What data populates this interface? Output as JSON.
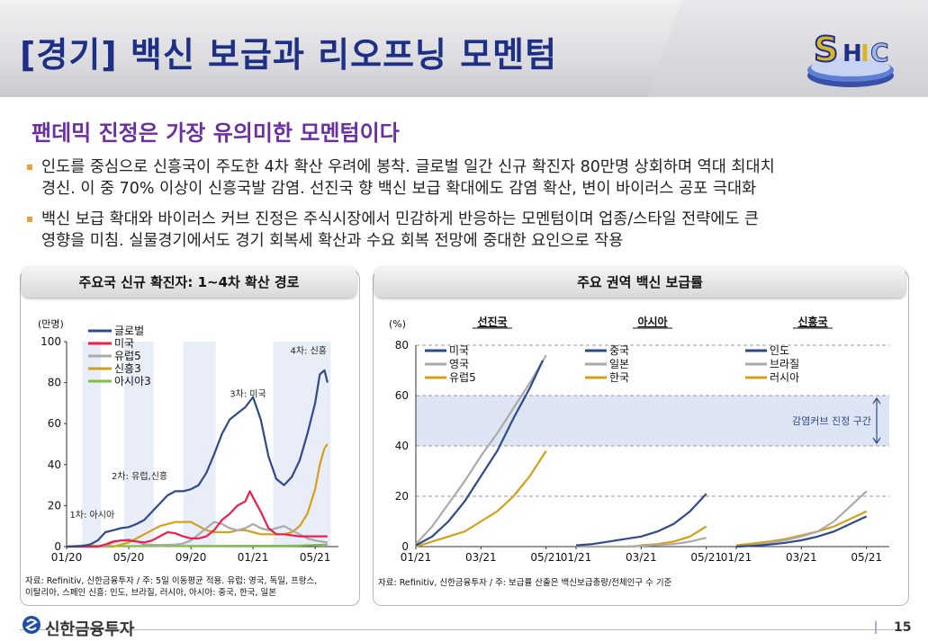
{
  "header": {
    "title": "[경기] 백신 보급과 리오프닝 모멘텀",
    "logo_text": "SHIC"
  },
  "subtitle": "팬데믹 진정은 가장 유의미한 모멘텀이다",
  "bullets": [
    {
      "line1": "인도를 중심으로 신흥국이 주도한 4차 확산 우려에 봉착. 글로벌 일간 신규 확진자 80만명 상회하며 역대 최대치",
      "line2": "경신. 이 중 70% 이상이 신흥국발 감염. 선진국 향 백신 보급 확대에도 감염 확산, 변이 바이러스 공포 극대화"
    },
    {
      "line1": "백신 보급 확대와 바이러스 커브 진정은 주식시장에서 민감하게 반응하는 모멘텀이며 업종/스타일 전략에도 큰",
      "line2": "영향을 미침. 실물경기에서도 경기 회복세 확산과 수요 회복 전망에 중대한 요인으로 작용"
    }
  ],
  "colors": {
    "navy": "#2e4a8a",
    "gray": "#aaaaaa",
    "red": "#e8204d",
    "gold": "#d4a017",
    "green": "#7ac043",
    "band": "#dde5f5",
    "title_blue": "#1e2f86",
    "purple": "#6b2fa0"
  },
  "footer": {
    "company": "신한금융투자",
    "page": "15"
  },
  "chart_data": [
    {
      "type": "line",
      "panel_title": "주요국 신규 확진자: 1~4차 확산 경로",
      "unit_label": "(만명)",
      "ylim": [
        0,
        100
      ],
      "yticks": [
        "0",
        "20",
        "40",
        "60",
        "80",
        "100"
      ],
      "xticks": [
        "01/20",
        "05/20",
        "09/20",
        "01/21",
        "05/21"
      ],
      "x_months": [
        0,
        4,
        8,
        12,
        16
      ],
      "xlim": [
        0,
        17.5
      ],
      "shaded_periods": [
        [
          1.0,
          2.2
        ],
        [
          3.7,
          5.6
        ],
        [
          7.5,
          9.6
        ],
        [
          13.3,
          17.0
        ]
      ],
      "annotations": [
        {
          "text": "1차: 아시아",
          "x": 0.2,
          "y": 14
        },
        {
          "text": "2차: 유럽,신흥",
          "x": 2.9,
          "y": 33
        },
        {
          "text": "3차: 미국",
          "x": 10.5,
          "y": 73
        },
        {
          "text": "4차: 신흥",
          "x": 14.4,
          "y": 94
        }
      ],
      "series": [
        {
          "name": "글로벌",
          "color": "#2e4a8a",
          "x": [
            0,
            1,
            1.5,
            2,
            2.5,
            3,
            3.5,
            4,
            4.5,
            5,
            5.5,
            6,
            6.5,
            7,
            7.5,
            8,
            8.5,
            9,
            9.5,
            10,
            10.5,
            11,
            11.5,
            12,
            12.5,
            13,
            13.5,
            14,
            14.5,
            15,
            15.5,
            16,
            16.3,
            16.6,
            16.8
          ],
          "y": [
            0,
            0.3,
            1,
            3,
            7,
            8,
            9,
            9.5,
            11,
            13,
            17,
            21,
            25,
            27,
            27,
            28,
            30,
            36,
            45,
            55,
            62,
            65,
            68,
            73,
            62,
            44,
            33,
            30,
            34,
            42,
            55,
            70,
            84,
            86,
            80
          ]
        },
        {
          "name": "미국",
          "color": "#e8204d",
          "x": [
            0,
            2,
            2.5,
            3,
            3.5,
            4,
            4.5,
            5,
            5.5,
            6,
            6.5,
            7,
            7.5,
            8,
            8.5,
            9,
            9.5,
            10,
            10.5,
            11,
            11.5,
            11.8,
            12,
            12.5,
            13,
            13.5,
            14,
            15,
            16,
            16.8
          ],
          "y": [
            0,
            0,
            1,
            2.5,
            3,
            3,
            2.5,
            2,
            3,
            5,
            7,
            6.5,
            5,
            4,
            4,
            5,
            8,
            13,
            16,
            20,
            22,
            27,
            24,
            17,
            9,
            6,
            6,
            5,
            5,
            5
          ]
        },
        {
          "name": "유럽5",
          "color": "#aaaaaa",
          "x": [
            0,
            2.5,
            3,
            3.5,
            4,
            4.5,
            5,
            6,
            7,
            7.5,
            8,
            8.5,
            9,
            9.5,
            10,
            10.5,
            11,
            11.5,
            12,
            12.5,
            13,
            13.5,
            14,
            14.5,
            15,
            15.5,
            16,
            16.8
          ],
          "y": [
            0,
            0,
            2,
            3,
            3.5,
            2.5,
            1,
            0.8,
            1,
            1.5,
            3,
            6,
            9,
            12,
            11,
            9,
            8,
            9,
            11,
            9,
            8,
            9,
            10,
            8,
            6,
            4,
            3,
            2
          ]
        },
        {
          "name": "신흥3",
          "color": "#d4a017",
          "x": [
            0,
            3,
            3.5,
            4,
            4.5,
            5,
            5.5,
            6,
            6.5,
            7,
            7.5,
            8,
            8.5,
            9,
            9.5,
            10,
            10.5,
            11,
            11.5,
            12,
            12.5,
            13,
            13.5,
            14,
            14.5,
            15,
            15.5,
            16,
            16.3,
            16.6,
            16.8
          ],
          "y": [
            0,
            0,
            1,
            2,
            4,
            6,
            8,
            10,
            11,
            12,
            12,
            12,
            10,
            8,
            7,
            7,
            7,
            8,
            8,
            7,
            6,
            6,
            6,
            6,
            7,
            10,
            16,
            28,
            40,
            48,
            50
          ]
        },
        {
          "name": "아시아3",
          "color": "#7ac043",
          "x": [
            0,
            1,
            1.5,
            2,
            4,
            8,
            12,
            14,
            15,
            16,
            16.8
          ],
          "y": [
            0,
            0.5,
            0.8,
            0.3,
            0.2,
            0.3,
            0.4,
            0.4,
            0.5,
            0.8,
            1
          ]
        }
      ],
      "source_lines": [
        "자료: Refinitiv, 신한금융투자 / 주: 5일 이동평균 적용.   유럽: 영국, 독일, 프랑스,",
        "이탈리아, 스페인 신흥: 인도, 브라질, 러시아, 아시아: 중국, 한국, 일본"
      ]
    },
    {
      "type": "line",
      "panel_title": "주요 권역 백신 보급률",
      "unit_label": "(%)",
      "ylim": [
        0,
        80
      ],
      "yticks": [
        "0",
        "20",
        "40",
        "60",
        "80"
      ],
      "band": {
        "from": 40,
        "to": 60,
        "label": "감염커브 진정 구간"
      },
      "xlim": [
        0,
        4.7
      ],
      "subplots": [
        {
          "title": "선진국",
          "xticks": [
            "01/21",
            "03/21",
            "05/21"
          ],
          "x_months": [
            0,
            2,
            4
          ],
          "series": [
            {
              "name": "미국",
              "color": "#2e4a8a",
              "x": [
                0,
                0.5,
                1,
                1.5,
                2,
                2.5,
                3,
                3.5,
                3.9
              ],
              "y": [
                0.5,
                4,
                10,
                18,
                28,
                38,
                51,
                63,
                74
              ]
            },
            {
              "name": "영국",
              "color": "#aaaaaa",
              "x": [
                0,
                0.5,
                1,
                1.5,
                2,
                2.5,
                3,
                3.5,
                4.0
              ],
              "y": [
                1,
                8,
                17,
                26,
                36,
                45,
                55,
                65,
                76
              ]
            },
            {
              "name": "유럽5",
              "color": "#d4a017",
              "x": [
                0,
                0.5,
                1,
                1.5,
                2,
                2.5,
                3,
                3.5,
                4.0
              ],
              "y": [
                0,
                2,
                4,
                6,
                10,
                14,
                20,
                28,
                38
              ]
            }
          ]
        },
        {
          "title": "아시아",
          "xticks": [
            "01/21",
            "03/21",
            "05/21"
          ],
          "x_months": [
            0,
            2,
            4
          ],
          "series": [
            {
              "name": "중국",
              "color": "#2e4a8a",
              "x": [
                0,
                0.5,
                1,
                1.5,
                2,
                2.5,
                3,
                3.5,
                4.0
              ],
              "y": [
                0.5,
                1,
                2,
                3,
                4,
                6,
                9,
                14,
                21
              ]
            },
            {
              "name": "일본",
              "color": "#aaaaaa",
              "x": [
                0,
                1.5,
                2,
                2.5,
                3,
                3.5,
                4.0
              ],
              "y": [
                0,
                0,
                0.3,
                0.6,
                1,
                2,
                3.5
              ]
            },
            {
              "name": "한국",
              "color": "#d4a017",
              "x": [
                0,
                1.8,
                2,
                2.5,
                3,
                3.5,
                4.0
              ],
              "y": [
                0,
                0,
                0.5,
                1,
                2,
                4,
                8
              ]
            }
          ]
        },
        {
          "title": "신흥국",
          "xticks": [
            "01/21",
            "03/21",
            "05/21"
          ],
          "x_months": [
            0,
            2,
            4
          ],
          "series": [
            {
              "name": "인도",
              "color": "#2e4a8a",
              "x": [
                0,
                0.5,
                1,
                1.5,
                2,
                2.5,
                3,
                3.5,
                4.0
              ],
              "y": [
                0,
                0.3,
                0.8,
                1.5,
                2.5,
                4,
                6,
                9,
                12
              ]
            },
            {
              "name": "브라질",
              "color": "#aaaaaa",
              "x": [
                0,
                0.5,
                1,
                1.5,
                2,
                2.5,
                3,
                3.5,
                4.0
              ],
              "y": [
                0,
                0.5,
                1.5,
                2.5,
                4,
                6,
                10,
                16,
                22
              ]
            },
            {
              "name": "러시아",
              "color": "#d4a017",
              "x": [
                0,
                0.5,
                1,
                1.5,
                2,
                2.5,
                3,
                3.5,
                4.0
              ],
              "y": [
                0.5,
                1.2,
                2,
                3,
                4.5,
                6,
                8,
                11,
                14
              ]
            }
          ]
        }
      ],
      "source_lines": [
        "자료: Refinitiv, 신한금융투자 / 주: 보급률 산출은 백신보급총량/전체인구 수 기준"
      ]
    }
  ]
}
